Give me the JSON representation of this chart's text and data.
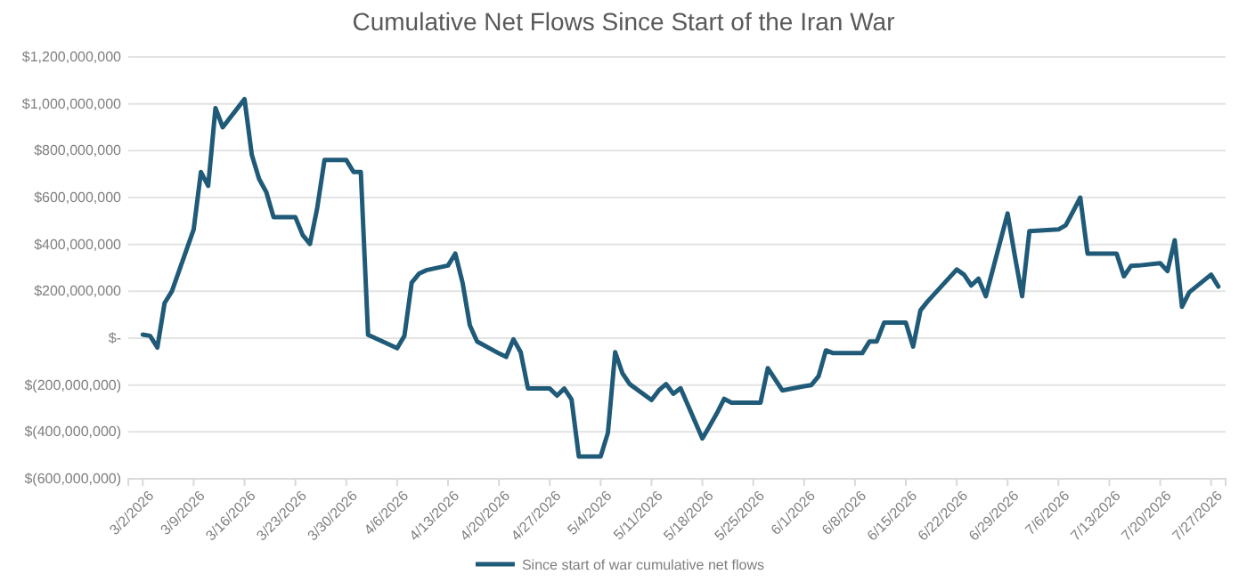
{
  "chart_data": {
    "type": "line",
    "title": "Cumulative Net Flows Since Start of the Iran War",
    "x": [
      "2026-03-02",
      "2026-03-03",
      "2026-03-04",
      "2026-03-05",
      "2026-03-06",
      "2026-03-09",
      "2026-03-10",
      "2026-03-11",
      "2026-03-12",
      "2026-03-13",
      "2026-03-16",
      "2026-03-17",
      "2026-03-18",
      "2026-03-19",
      "2026-03-20",
      "2026-03-23",
      "2026-03-24",
      "2026-03-25",
      "2026-03-26",
      "2026-03-27",
      "2026-03-30",
      "2026-03-31",
      "2026-04-01",
      "2026-04-02",
      "2026-04-06",
      "2026-04-07",
      "2026-04-08",
      "2026-04-09",
      "2026-04-10",
      "2026-04-13",
      "2026-04-14",
      "2026-04-15",
      "2026-04-16",
      "2026-04-17",
      "2026-04-20",
      "2026-04-21",
      "2026-04-22",
      "2026-04-23",
      "2026-04-24",
      "2026-04-27",
      "2026-04-28",
      "2026-04-29",
      "2026-04-30",
      "2026-05-01",
      "2026-05-04",
      "2026-05-05",
      "2026-05-06",
      "2026-05-07",
      "2026-05-08",
      "2026-05-11",
      "2026-05-12",
      "2026-05-13",
      "2026-05-14",
      "2026-05-15",
      "2026-05-18",
      "2026-05-19",
      "2026-05-20",
      "2026-05-21",
      "2026-05-22",
      "2026-05-26",
      "2026-05-27",
      "2026-05-28",
      "2026-05-29",
      "2026-06-01",
      "2026-06-02",
      "2026-06-03",
      "2026-06-04",
      "2026-06-05",
      "2026-06-08",
      "2026-06-09",
      "2026-06-10",
      "2026-06-11",
      "2026-06-12",
      "2026-06-15",
      "2026-06-16",
      "2026-06-17",
      "2026-06-18",
      "2026-06-22",
      "2026-06-23",
      "2026-06-24",
      "2026-06-25",
      "2026-06-26",
      "2026-06-29",
      "2026-06-30",
      "2026-07-01",
      "2026-07-02",
      "2026-07-06",
      "2026-07-07",
      "2026-07-08",
      "2026-07-09",
      "2026-07-10",
      "2026-07-13",
      "2026-07-14",
      "2026-07-15",
      "2026-07-16",
      "2026-07-17",
      "2026-07-20",
      "2026-07-21",
      "2026-07-22",
      "2026-07-23",
      "2026-07-24",
      "2026-07-27",
      "2026-07-28"
    ],
    "series": [
      {
        "name": "Since start of war cumulative net flows",
        "color": "#1f5a78",
        "values": [
          15000000,
          10000000,
          -40000000,
          150000000,
          200000000,
          464000000,
          709000000,
          650000000,
          982000000,
          900000000,
          1020000000,
          782000000,
          680000000,
          623000000,
          516000000,
          516000000,
          440000000,
          402000000,
          555000000,
          760000000,
          760000000,
          709000000,
          709000000,
          14000000,
          -43000000,
          10000000,
          237000000,
          275000000,
          290000000,
          310000000,
          361000000,
          237000000,
          55000000,
          -14000000,
          -65000000,
          -80000000,
          -5000000,
          -60000000,
          -215000000,
          -215000000,
          -245000000,
          -215000000,
          -262000000,
          -505000000,
          -505000000,
          -404000000,
          -60000000,
          -150000000,
          -196000000,
          -264000000,
          -223000000,
          -196000000,
          -237000000,
          -214000000,
          -428000000,
          -375000000,
          -320000000,
          -259000000,
          -275000000,
          -275000000,
          -128000000,
          -175000000,
          -223000000,
          -205000000,
          -200000000,
          -162000000,
          -52000000,
          -64000000,
          -64000000,
          -64000000,
          -14000000,
          -14000000,
          66000000,
          66000000,
          -36000000,
          118000000,
          157000000,
          293000000,
          271000000,
          225000000,
          254000000,
          179000000,
          532000000,
          350000000,
          179000000,
          457000000,
          464000000,
          482000000,
          540000000,
          600000000,
          361000000,
          361000000,
          361000000,
          264000000,
          309000000,
          310000000,
          320000000,
          286000000,
          418000000,
          134000000,
          196000000,
          271000000,
          220000000
        ]
      }
    ],
    "xlim": [
      "2026-02-28",
      "2026-07-29"
    ],
    "xticks": [
      {
        "value": "2026-03-02",
        "label": "3/2/2026"
      },
      {
        "value": "2026-03-09",
        "label": "3/9/2026"
      },
      {
        "value": "2026-03-16",
        "label": "3/16/2026"
      },
      {
        "value": "2026-03-23",
        "label": "3/23/2026"
      },
      {
        "value": "2026-03-30",
        "label": "3/30/2026"
      },
      {
        "value": "2026-04-06",
        "label": "4/6/2026"
      },
      {
        "value": "2026-04-13",
        "label": "4/13/2026"
      },
      {
        "value": "2026-04-20",
        "label": "4/20/2026"
      },
      {
        "value": "2026-04-27",
        "label": "4/27/2026"
      },
      {
        "value": "2026-05-04",
        "label": "5/4/2026"
      },
      {
        "value": "2026-05-11",
        "label": "5/11/2026"
      },
      {
        "value": "2026-05-18",
        "label": "5/18/2026"
      },
      {
        "value": "2026-05-25",
        "label": "5/25/2026"
      },
      {
        "value": "2026-06-01",
        "label": "6/1/2026"
      },
      {
        "value": "2026-06-08",
        "label": "6/8/2026"
      },
      {
        "value": "2026-06-15",
        "label": "6/15/2026"
      },
      {
        "value": "2026-06-22",
        "label": "6/22/2026"
      },
      {
        "value": "2026-06-29",
        "label": "6/29/2026"
      },
      {
        "value": "2026-07-06",
        "label": "7/6/2026"
      },
      {
        "value": "2026-07-13",
        "label": "7/13/2026"
      },
      {
        "value": "2026-07-20",
        "label": "7/20/2026"
      },
      {
        "value": "2026-07-27",
        "label": "7/27/2026"
      }
    ],
    "ylim": [
      -600000000,
      1200000000
    ],
    "yticks": [
      {
        "value": -600000000,
        "label": "$(600,000,000)"
      },
      {
        "value": -400000000,
        "label": "$(400,000,000)"
      },
      {
        "value": -200000000,
        "label": "$(200,000,000)"
      },
      {
        "value": 0,
        "label": "$-"
      },
      {
        "value": 200000000,
        "label": "$200,000,000"
      },
      {
        "value": 400000000,
        "label": "$400,000,000"
      },
      {
        "value": 600000000,
        "label": "$600,000,000"
      },
      {
        "value": 800000000,
        "label": "$800,000,000"
      },
      {
        "value": 1000000000,
        "label": "$1,000,000,000"
      },
      {
        "value": 1200000000,
        "label": "$1,200,000,000"
      }
    ],
    "grid": "y",
    "legend": "bottom",
    "marker": "none",
    "line_style": "solid"
  }
}
